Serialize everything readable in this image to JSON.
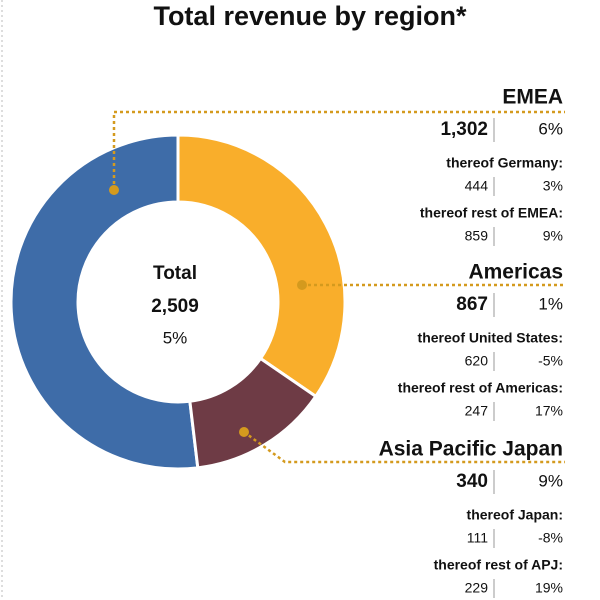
{
  "chart_data": {
    "type": "donut",
    "title": "Total revenue by region*",
    "center_label": "Total",
    "total_label": "2,509",
    "total_growth": "5%",
    "categories": [
      "EMEA",
      "Americas",
      "Asia Pacific Japan"
    ],
    "values": [
      1302,
      867,
      340
    ],
    "value_labels": [
      "1,302",
      "867",
      "340"
    ],
    "growth": [
      "6%",
      "1%",
      "9%"
    ],
    "colors": [
      "#3e6ca8",
      "#f9ae2b",
      "#6e3b45"
    ],
    "breakdown": [
      [
        {
          "name": "thereof Germany:",
          "value": 444,
          "growth": "3%"
        },
        {
          "name": "thereof rest of EMEA:",
          "value": 859,
          "growth": "9%"
        }
      ],
      [
        {
          "name": "thereof United States:",
          "value": 620,
          "growth": "-5%"
        },
        {
          "name": "thereof rest of Americas:",
          "value": 247,
          "growth": "17%"
        }
      ],
      [
        {
          "name": "thereof Japan:",
          "value": 111,
          "growth": "-8%"
        },
        {
          "name": "thereof rest of APJ:",
          "value": 229,
          "growth": "19%"
        }
      ]
    ]
  }
}
